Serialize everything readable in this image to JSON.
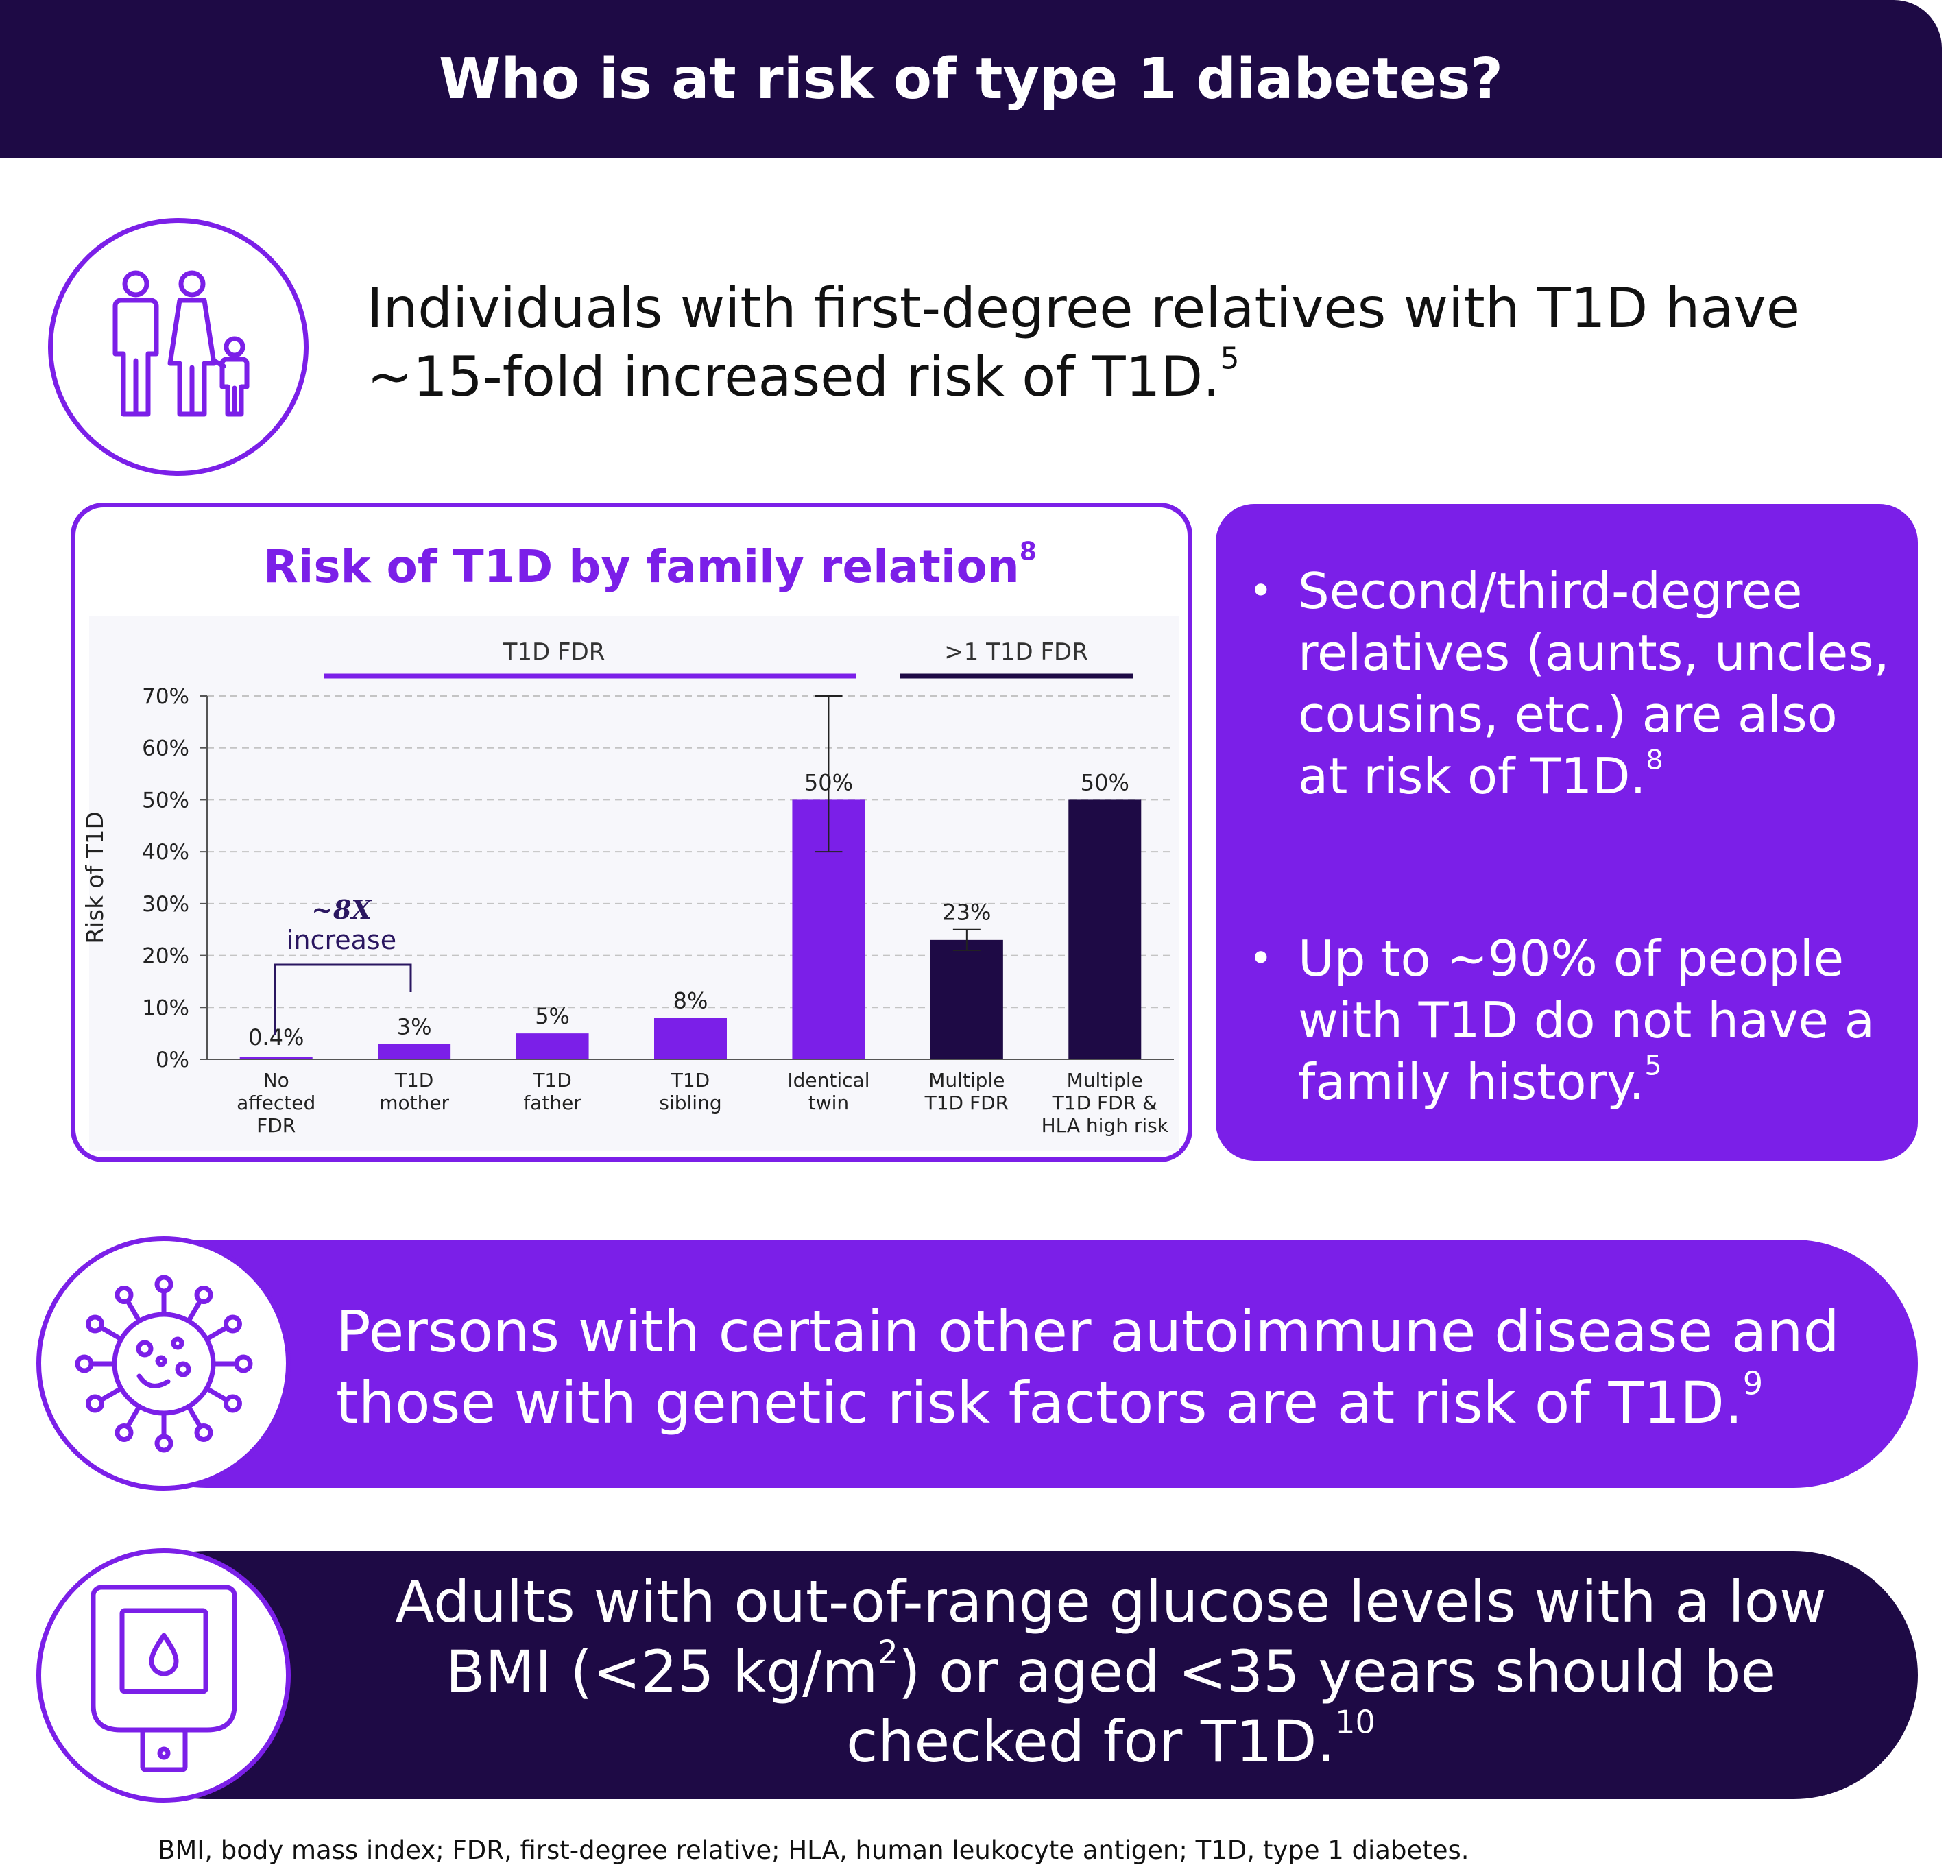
{
  "header": {
    "title": "Who is at risk of type 1 diabetes?"
  },
  "family_section": {
    "icon": "family-icon",
    "text": "Individuals with first-degree relatives with T1D have ~15-fold increased risk of T1D.",
    "sup": "5"
  },
  "chart_panel": {
    "title": "Risk of T1D by family relation",
    "title_sup": "8",
    "group_labels": [
      "T1D FDR",
      ">1 T1D FDR"
    ],
    "annotation_value": "~8X",
    "annotation_text": "increase"
  },
  "chart_data": {
    "type": "bar",
    "title": "Risk of T1D by family relation",
    "ylabel": "Risk of T1D",
    "xlabel": "",
    "ylim": [
      0,
      70
    ],
    "yticks": [
      "0%",
      "10%",
      "20%",
      "30%",
      "40%",
      "50%",
      "60%",
      "70%"
    ],
    "categories": [
      [
        "No",
        "affected",
        "FDR"
      ],
      [
        "T1D",
        "mother"
      ],
      [
        "T1D",
        "father"
      ],
      [
        "T1D",
        "sibling"
      ],
      [
        "Identical",
        "twin"
      ],
      [
        "Multiple",
        "T1D FDR"
      ],
      [
        "Multiple",
        "T1D FDR &",
        "HLA high risk"
      ]
    ],
    "values": [
      0.4,
      3,
      5,
      8,
      50,
      23,
      50
    ],
    "labels": [
      "0.4%",
      "3%",
      "5%",
      "8%",
      "50%",
      "23%",
      "50%"
    ],
    "error_bars": [
      null,
      null,
      null,
      null,
      [
        40,
        70
      ],
      [
        21,
        25
      ],
      null
    ],
    "groups": [
      "none",
      "T1D FDR",
      "T1D FDR",
      "T1D FDR",
      "T1D FDR",
      ">1 T1D FDR",
      ">1 T1D FDR"
    ],
    "grid": true
  },
  "right_panel": {
    "bullet_1": "Second/third-degree relatives (aunts, uncles, cousins, etc.) are also at risk of T1D.",
    "bullet_1_sup": "8",
    "bullet_2": "Up to ~90% of people with T1D do not have a family history.",
    "bullet_2_sup": "5",
    "bullet_char": "•"
  },
  "autoimmune_section": {
    "icon": "virus-icon",
    "text": "Persons with certain other autoimmune disease and those with genetic risk factors are at risk of T1D.",
    "sup": "9"
  },
  "glucose_section": {
    "icon": "glucose-meter-icon",
    "line_1": "Adults with out-of-range glucose levels with a low",
    "line_2_a": "BMI (<25 kg/m",
    "line_2_sup": "2",
    "line_2_b": ") or aged <35 years should be",
    "line_3": "checked for T1D.",
    "sup": "10"
  },
  "footnote": "BMI, body mass index; FDR, first-degree relative; HLA, human leukocyte antigen; T1D, type 1 diabetes.",
  "colors": {
    "purple": "#7b1fe8",
    "dark": "#1e0a45",
    "white": "#ffffff"
  }
}
